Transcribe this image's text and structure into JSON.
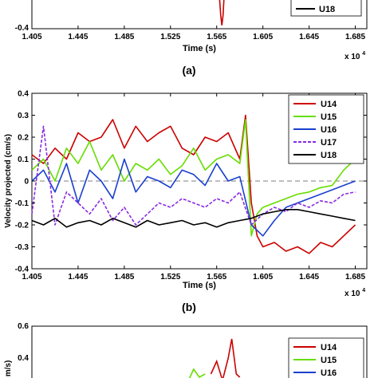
{
  "figure": {
    "caption_a": "(a)",
    "caption_b": "(b)"
  },
  "chart_data": [
    {
      "type": "line",
      "panel": "a",
      "xlabel": "Time (s)",
      "x_multiplier": "x 10",
      "x_multiplier_exp": "4",
      "x_ticks": [
        "1.405",
        "1.445",
        "1.485",
        "1.525",
        "1.565",
        "1.605",
        "1.645",
        "1.685"
      ],
      "y_ticks_visible": [
        "-0.4"
      ],
      "xlim": [
        1.405,
        1.695
      ],
      "ylim_visible": [
        -0.4,
        -0.3
      ],
      "legend_visible": [
        "U18"
      ],
      "series": [
        {
          "name": "U18",
          "color": "#000000",
          "x": [],
          "y": []
        },
        {
          "name": "U14",
          "color": "#cc0000",
          "x": [
            1.5675,
            1.5685,
            1.5695,
            1.5705,
            1.5715
          ],
          "y": [
            -0.31,
            -0.36,
            -0.39,
            -0.36,
            -0.3
          ]
        }
      ]
    },
    {
      "type": "line",
      "panel": "b",
      "xlabel": "Time (s)",
      "ylabel": "Velocity projected (cm/s)",
      "x_multiplier": "x 10",
      "x_multiplier_exp": "4",
      "xlim": [
        1.405,
        1.695
      ],
      "ylim": [
        -0.4,
        0.4
      ],
      "x_ticks": [
        "1.405",
        "1.445",
        "1.485",
        "1.525",
        "1.565",
        "1.605",
        "1.645",
        "1.685"
      ],
      "x_tick_values": [
        1.405,
        1.445,
        1.485,
        1.525,
        1.565,
        1.605,
        1.645,
        1.685
      ],
      "y_ticks": [
        "-0.4",
        "-0.3",
        "-0.2",
        "-0.1",
        "0",
        "0.1",
        "0.2",
        "0.3",
        "0.4"
      ],
      "y_tick_values": [
        -0.4,
        -0.3,
        -0.2,
        -0.1,
        0,
        0.1,
        0.2,
        0.3,
        0.4
      ],
      "zero_line": "dashed",
      "legend_position": "top-right",
      "series": [
        {
          "name": "U14",
          "color": "#cc0000",
          "dash": "solid",
          "x": [
            1.405,
            1.415,
            1.425,
            1.435,
            1.445,
            1.455,
            1.465,
            1.475,
            1.485,
            1.495,
            1.505,
            1.515,
            1.525,
            1.535,
            1.545,
            1.555,
            1.565,
            1.575,
            1.585,
            1.59,
            1.595,
            1.6,
            1.605,
            1.615,
            1.625,
            1.635,
            1.645,
            1.655,
            1.665,
            1.675,
            1.685
          ],
          "y": [
            0.12,
            0.08,
            0.15,
            0.1,
            0.22,
            0.18,
            0.2,
            0.28,
            0.15,
            0.25,
            0.18,
            0.22,
            0.25,
            0.15,
            0.12,
            0.2,
            0.18,
            0.22,
            0.1,
            0.3,
            -0.1,
            -0.25,
            -0.3,
            -0.28,
            -0.32,
            -0.3,
            -0.33,
            -0.28,
            -0.3,
            -0.25,
            -0.2
          ]
        },
        {
          "name": "U15",
          "color": "#66dd00",
          "dash": "solid",
          "x": [
            1.405,
            1.415,
            1.425,
            1.435,
            1.445,
            1.455,
            1.465,
            1.475,
            1.485,
            1.495,
            1.505,
            1.515,
            1.525,
            1.535,
            1.545,
            1.555,
            1.565,
            1.575,
            1.585,
            1.59,
            1.595,
            1.6,
            1.605,
            1.615,
            1.625,
            1.635,
            1.645,
            1.655,
            1.665,
            1.675,
            1.685,
            1.69
          ],
          "y": [
            0.05,
            0.1,
            0.0,
            0.15,
            0.08,
            0.18,
            0.05,
            0.12,
            0.0,
            0.08,
            0.05,
            0.1,
            0.03,
            0.07,
            0.15,
            0.05,
            0.1,
            0.12,
            0.08,
            0.28,
            -0.25,
            -0.15,
            -0.12,
            -0.1,
            -0.08,
            -0.06,
            -0.05,
            -0.03,
            -0.02,
            0.05,
            0.1,
            0.12
          ]
        },
        {
          "name": "U16",
          "color": "#1a3fcf",
          "dash": "solid",
          "x": [
            1.405,
            1.415,
            1.425,
            1.435,
            1.445,
            1.455,
            1.465,
            1.475,
            1.485,
            1.495,
            1.505,
            1.515,
            1.525,
            1.535,
            1.545,
            1.555,
            1.565,
            1.575,
            1.585,
            1.595,
            1.605,
            1.615,
            1.625,
            1.635,
            1.645,
            1.655,
            1.665,
            1.675,
            1.685
          ],
          "y": [
            0.0,
            0.05,
            -0.05,
            0.08,
            -0.1,
            0.05,
            0.0,
            -0.08,
            0.1,
            -0.05,
            0.02,
            0.0,
            -0.03,
            0.05,
            0.03,
            -0.02,
            0.08,
            0.0,
            0.02,
            -0.2,
            -0.25,
            -0.18,
            -0.12,
            -0.1,
            -0.08,
            -0.06,
            -0.04,
            -0.02,
            0.0
          ]
        },
        {
          "name": "U17",
          "color": "#8a2be2",
          "dash": "dashed",
          "x": [
            1.405,
            1.415,
            1.425,
            1.435,
            1.445,
            1.455,
            1.465,
            1.475,
            1.485,
            1.495,
            1.505,
            1.515,
            1.525,
            1.535,
            1.545,
            1.555,
            1.565,
            1.575,
            1.585,
            1.595,
            1.605,
            1.615,
            1.625,
            1.635,
            1.645,
            1.655,
            1.665,
            1.675,
            1.685
          ],
          "y": [
            -0.15,
            0.25,
            -0.2,
            -0.05,
            -0.1,
            -0.15,
            -0.08,
            -0.18,
            -0.12,
            -0.2,
            -0.15,
            -0.1,
            -0.12,
            -0.08,
            -0.1,
            -0.12,
            -0.08,
            -0.1,
            -0.05,
            -0.2,
            -0.15,
            -0.12,
            -0.14,
            -0.1,
            -0.12,
            -0.09,
            -0.1,
            -0.06,
            -0.05
          ]
        },
        {
          "name": "U18",
          "color": "#000000",
          "dash": "solid",
          "x": [
            1.405,
            1.415,
            1.425,
            1.435,
            1.445,
            1.455,
            1.465,
            1.475,
            1.485,
            1.495,
            1.505,
            1.515,
            1.525,
            1.535,
            1.545,
            1.555,
            1.565,
            1.575,
            1.585,
            1.595,
            1.605,
            1.615,
            1.625,
            1.635,
            1.645,
            1.655,
            1.665,
            1.675,
            1.685
          ],
          "y": [
            -0.18,
            -0.2,
            -0.17,
            -0.21,
            -0.19,
            -0.18,
            -0.2,
            -0.17,
            -0.19,
            -0.21,
            -0.18,
            -0.2,
            -0.19,
            -0.18,
            -0.2,
            -0.19,
            -0.21,
            -0.19,
            -0.18,
            -0.17,
            -0.15,
            -0.14,
            -0.13,
            -0.13,
            -0.14,
            -0.15,
            -0.16,
            -0.17,
            -0.18
          ]
        }
      ]
    },
    {
      "type": "line",
      "panel": "c",
      "y_ticks_visible": [
        "0.6",
        "0.4"
      ],
      "ylim_visible": [
        0.2,
        0.6
      ],
      "ylabel_visible": "m/s)",
      "legend_visible": [
        "U14",
        "U15",
        "U16"
      ],
      "series": [
        {
          "name": "U14",
          "color": "#cc0000",
          "x": [
            1.56,
            1.565,
            1.57,
            1.575,
            1.578,
            1.582,
            1.585
          ],
          "y": [
            0.3,
            0.38,
            0.26,
            0.4,
            0.52,
            0.3,
            0.28
          ]
        },
        {
          "name": "U15",
          "color": "#66dd00",
          "x": [
            1.54,
            1.545,
            1.55,
            1.555
          ],
          "y": [
            0.25,
            0.33,
            0.28,
            0.3
          ]
        },
        {
          "name": "U16",
          "color": "#1a3fcf",
          "x": [],
          "y": []
        }
      ]
    }
  ]
}
